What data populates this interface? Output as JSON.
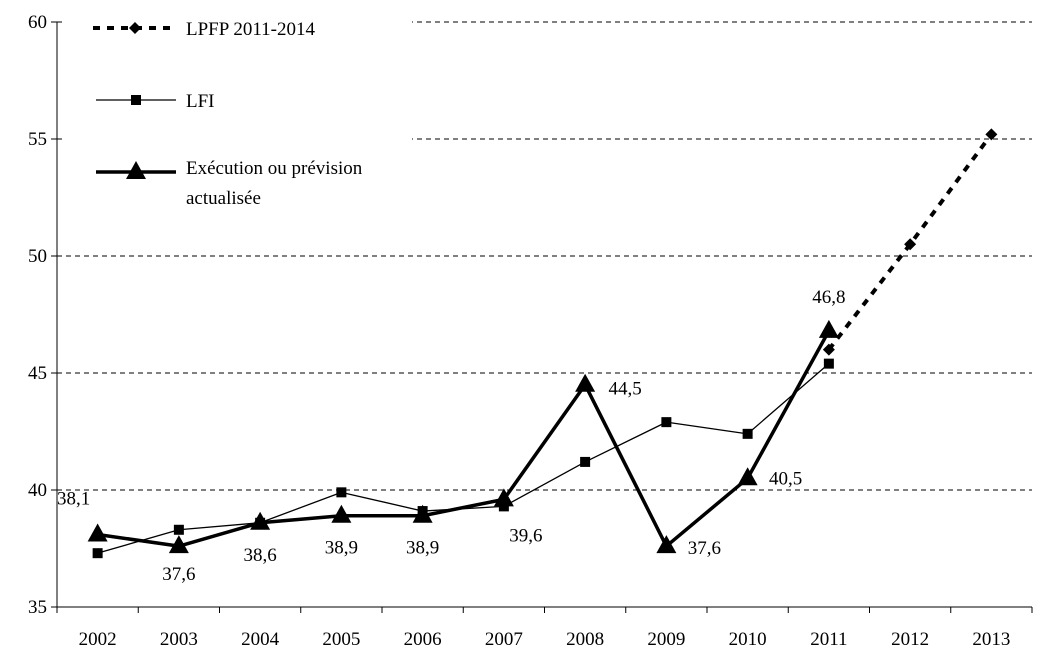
{
  "chart_data": {
    "type": "line",
    "categories": [
      "2002",
      "2003",
      "2004",
      "2005",
      "2006",
      "2007",
      "2008",
      "2009",
      "2010",
      "2011",
      "2012",
      "2013"
    ],
    "ylim": [
      35,
      60
    ],
    "yticks": [
      35,
      40,
      45,
      50,
      55,
      60
    ],
    "grid": "horizontal dashed",
    "legend_position": "top-left",
    "series": [
      {
        "name": "LPFP 2011-2014",
        "style": "dotted-thick",
        "marker": "diamond",
        "color": "#000000",
        "x": [
          "2011",
          "2012",
          "2013"
        ],
        "values": [
          46.0,
          50.5,
          55.2
        ]
      },
      {
        "name": "LFI",
        "style": "solid-thin",
        "marker": "square",
        "color": "#000000",
        "x": [
          "2002",
          "2003",
          "2004",
          "2005",
          "2006",
          "2007",
          "2008",
          "2009",
          "2010",
          "2011"
        ],
        "values": [
          37.3,
          38.3,
          38.6,
          39.9,
          39.1,
          39.3,
          41.2,
          42.9,
          42.4,
          45.4
        ]
      },
      {
        "name": "Exécution ou prévision actualisée",
        "name_lines": [
          "Exécution ou prévision",
          "actualisée"
        ],
        "style": "solid-thick",
        "marker": "triangle",
        "color": "#000000",
        "x": [
          "2002",
          "2003",
          "2004",
          "2005",
          "2006",
          "2007",
          "2008",
          "2009",
          "2010",
          "2011"
        ],
        "values": [
          38.1,
          37.6,
          38.6,
          38.9,
          38.9,
          39.6,
          44.5,
          37.6,
          40.5,
          46.8
        ],
        "labels": [
          "38,1",
          "37,6",
          "38,6",
          "38,9",
          "38,9",
          "39,6",
          "44,5",
          "37,6",
          "40,5",
          "46,8"
        ]
      }
    ]
  }
}
